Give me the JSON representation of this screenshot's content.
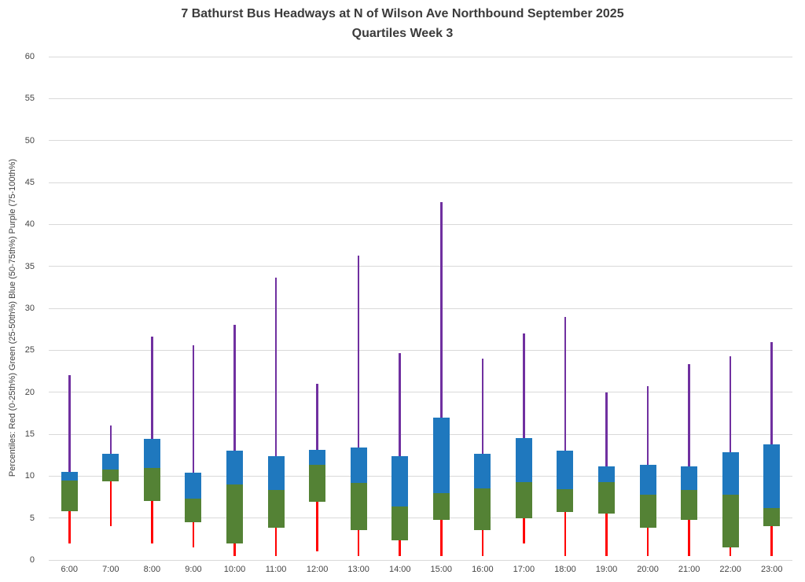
{
  "title": "7 Bathurst Bus Headways at N of Wilson Ave Northbound September 2025",
  "subtitle": "Quartiles Week 3",
  "chart_data": {
    "type": "boxplot",
    "title": "7 Bathurst Bus Headways at N of Wilson Ave Northbound September 2025",
    "subtitle": "Quartiles Week 3",
    "ylabel": "Percentiles:  Red (0-25th%)  Green (25-50th%)  Blue (50-75th%)  Purple (75-100th%)",
    "xlabel": "",
    "ylim": [
      0,
      60
    ],
    "ytick_interval": 5,
    "grid": "horizontal",
    "legend": "none",
    "categories": [
      "6:00",
      "7:00",
      "8:00",
      "9:00",
      "10:00",
      "11:00",
      "12:00",
      "13:00",
      "14:00",
      "15:00",
      "16:00",
      "17:00",
      "18:00",
      "19:00",
      "20:00",
      "21:00",
      "22:00",
      "23:00"
    ],
    "series": [
      {
        "name": "min",
        "values": [
          2.0,
          4.0,
          2.0,
          1.5,
          0.5,
          0.5,
          1.0,
          0.5,
          0.5,
          0.5,
          0.5,
          2.0,
          0.5,
          0.5,
          0.5,
          0.5,
          0.5,
          0.5
        ]
      },
      {
        "name": "p25",
        "values": [
          5.8,
          9.4,
          7.0,
          4.5,
          2.0,
          3.8,
          6.9,
          3.6,
          2.3,
          4.8,
          3.6,
          5.0,
          5.7,
          5.5,
          3.8,
          4.8,
          1.5,
          4.0
        ]
      },
      {
        "name": "p50",
        "values": [
          9.5,
          10.8,
          11.0,
          7.3,
          9.0,
          8.3,
          11.3,
          9.2,
          6.4,
          8.0,
          8.5,
          9.3,
          8.4,
          9.3,
          7.8,
          8.3,
          7.8,
          6.2
        ]
      },
      {
        "name": "p75",
        "values": [
          10.5,
          12.7,
          14.4,
          10.4,
          13.0,
          12.4,
          13.1,
          13.4,
          12.4,
          17.0,
          12.7,
          14.5,
          13.0,
          11.2,
          11.3,
          11.2,
          12.8,
          13.8
        ]
      },
      {
        "name": "max",
        "values": [
          22.0,
          16.0,
          26.6,
          25.6,
          28.0,
          33.7,
          21.0,
          36.3,
          24.7,
          42.7,
          24.0,
          27.0,
          29.0,
          20.0,
          20.7,
          23.3,
          24.3,
          26.0
        ]
      }
    ],
    "colors": {
      "whisker_low": "#ff0000",
      "box_25_50": "#548235",
      "box_50_75": "#1f78be",
      "whisker_high": "#7030a0",
      "gridline": "#d9d9d9"
    }
  }
}
